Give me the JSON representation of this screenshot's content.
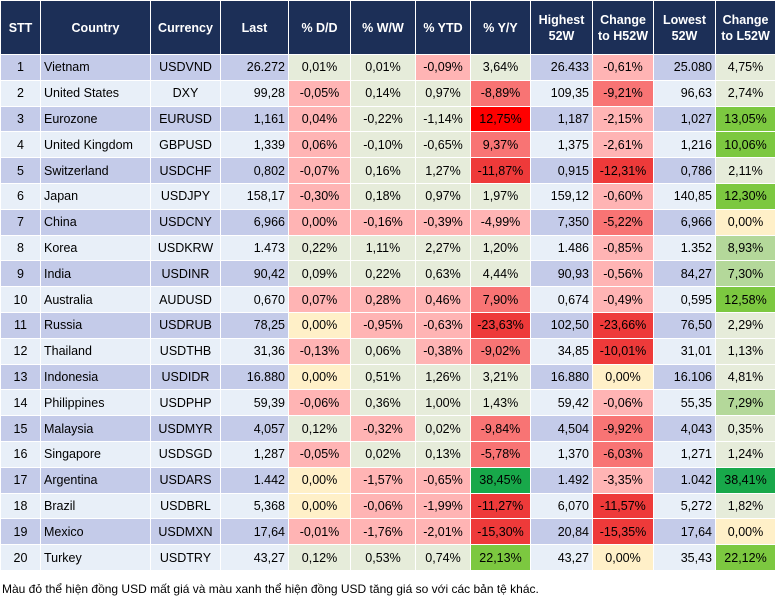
{
  "headers": [
    "STT",
    "Country",
    "Currency",
    "Last",
    "% D/D",
    "% W/W",
    "% YTD",
    "% Y/Y",
    "Highest 52W",
    "Change to H52W",
    "Lowest 52W",
    "Change to L52W"
  ],
  "colors": {
    "header_bg": "#1c2f57",
    "n": "#e6ecda",
    "r1": "#ffb4b4",
    "r2": "#f87474",
    "r3": "#ee3a3a",
    "r4": "#ff0000",
    "y": "#fff0c8",
    "g1": "#b4d89a",
    "g2": "#7cc840",
    "g3": "#18a84a"
  },
  "rows": [
    {
      "stt": "1",
      "country": "Vietnam",
      "currency": "USDVND",
      "last": "26.272",
      "dd": "0,01%",
      "ww": "0,01%",
      "ytd": "-0,09%",
      "yy": "3,64%",
      "high": "26.433",
      "ch": "-0,61%",
      "low": "25.080",
      "cl": "4,75%",
      "tone": [
        "n",
        "n",
        "r1",
        "n",
        "r1",
        "n"
      ]
    },
    {
      "stt": "2",
      "country": "United States",
      "currency": "DXY",
      "last": "99,28",
      "dd": "-0,05%",
      "ww": "0,14%",
      "ytd": "0,97%",
      "yy": "-8,89%",
      "high": "109,35",
      "ch": "-9,21%",
      "low": "96,63",
      "cl": "2,74%",
      "tone": [
        "r1",
        "n",
        "n",
        "r2",
        "r2",
        "n"
      ]
    },
    {
      "stt": "3",
      "country": "Eurozone",
      "currency": "EURUSD",
      "last": "1,161",
      "dd": "0,04%",
      "ww": "-0,22%",
      "ytd": "-1,14%",
      "yy": "12,75%",
      "high": "1,187",
      "ch": "-2,15%",
      "low": "1,027",
      "cl": "13,05%",
      "tone": [
        "r1",
        "n",
        "n",
        "r4",
        "r1",
        "g2"
      ]
    },
    {
      "stt": "4",
      "country": "United Kingdom",
      "currency": "GBPUSD",
      "last": "1,339",
      "dd": "0,06%",
      "ww": "-0,10%",
      "ytd": "-0,65%",
      "yy": "9,37%",
      "high": "1,375",
      "ch": "-2,61%",
      "low": "1,216",
      "cl": "10,06%",
      "tone": [
        "r1",
        "n",
        "n",
        "r2",
        "r1",
        "g2"
      ]
    },
    {
      "stt": "5",
      "country": "Switzerland",
      "currency": "USDCHF",
      "last": "0,802",
      "dd": "-0,07%",
      "ww": "0,16%",
      "ytd": "1,27%",
      "yy": "-11,87%",
      "high": "0,915",
      "ch": "-12,31%",
      "low": "0,786",
      "cl": "2,11%",
      "tone": [
        "r1",
        "n",
        "n",
        "r3",
        "r3",
        "n"
      ]
    },
    {
      "stt": "6",
      "country": "Japan",
      "currency": "USDJPY",
      "last": "158,17",
      "dd": "-0,30%",
      "ww": "0,18%",
      "ytd": "0,97%",
      "yy": "1,97%",
      "high": "159,12",
      "ch": "-0,60%",
      "low": "140,85",
      "cl": "12,30%",
      "tone": [
        "r1",
        "n",
        "n",
        "n",
        "r1",
        "g2"
      ]
    },
    {
      "stt": "7",
      "country": "China",
      "currency": "USDCNY",
      "last": "6,966",
      "dd": "0,00%",
      "ww": "-0,16%",
      "ytd": "-0,39%",
      "yy": "-4,99%",
      "high": "7,350",
      "ch": "-5,22%",
      "low": "6,966",
      "cl": "0,00%",
      "tone": [
        "r1",
        "r1",
        "r1",
        "r1",
        "r2",
        "y"
      ]
    },
    {
      "stt": "8",
      "country": "Korea",
      "currency": "USDKRW",
      "last": "1.473",
      "dd": "0,22%",
      "ww": "1,11%",
      "ytd": "2,27%",
      "yy": "1,20%",
      "high": "1.486",
      "ch": "-0,85%",
      "low": "1.352",
      "cl": "8,93%",
      "tone": [
        "n",
        "n",
        "n",
        "n",
        "r1",
        "g1"
      ]
    },
    {
      "stt": "9",
      "country": "India",
      "currency": "USDINR",
      "last": "90,42",
      "dd": "0,09%",
      "ww": "0,22%",
      "ytd": "0,63%",
      "yy": "4,44%",
      "high": "90,93",
      "ch": "-0,56%",
      "low": "84,27",
      "cl": "7,30%",
      "tone": [
        "n",
        "n",
        "n",
        "n",
        "r1",
        "g1"
      ]
    },
    {
      "stt": "10",
      "country": "Australia",
      "currency": "AUDUSD",
      "last": "0,670",
      "dd": "0,07%",
      "ww": "0,28%",
      "ytd": "0,46%",
      "yy": "7,90%",
      "high": "0,674",
      "ch": "-0,49%",
      "low": "0,595",
      "cl": "12,58%",
      "tone": [
        "r1",
        "r1",
        "r1",
        "r2",
        "r1",
        "g2"
      ]
    },
    {
      "stt": "11",
      "country": "Russia",
      "currency": "USDRUB",
      "last": "78,25",
      "dd": "0,00%",
      "ww": "-0,95%",
      "ytd": "-0,63%",
      "yy": "-23,63%",
      "high": "102,50",
      "ch": "-23,66%",
      "low": "76,50",
      "cl": "2,29%",
      "tone": [
        "y",
        "r1",
        "r1",
        "r3",
        "r3",
        "n"
      ]
    },
    {
      "stt": "12",
      "country": "Thailand",
      "currency": "USDTHB",
      "last": "31,36",
      "dd": "-0,13%",
      "ww": "0,06%",
      "ytd": "-0,38%",
      "yy": "-9,02%",
      "high": "34,85",
      "ch": "-10,01%",
      "low": "31,01",
      "cl": "1,13%",
      "tone": [
        "r1",
        "n",
        "r1",
        "r2",
        "r3",
        "n"
      ]
    },
    {
      "stt": "13",
      "country": "Indonesia",
      "currency": "USDIDR",
      "last": "16.880",
      "dd": "0,00%",
      "ww": "0,51%",
      "ytd": "1,26%",
      "yy": "3,21%",
      "high": "16.880",
      "ch": "0,00%",
      "low": "16.106",
      "cl": "4,81%",
      "tone": [
        "y",
        "n",
        "n",
        "n",
        "y",
        "n"
      ]
    },
    {
      "stt": "14",
      "country": "Philippines",
      "currency": "USDPHP",
      "last": "59,39",
      "dd": "-0,06%",
      "ww": "0,36%",
      "ytd": "1,00%",
      "yy": "1,43%",
      "high": "59,42",
      "ch": "-0,06%",
      "low": "55,35",
      "cl": "7,29%",
      "tone": [
        "r1",
        "n",
        "n",
        "n",
        "r1",
        "g1"
      ]
    },
    {
      "stt": "15",
      "country": "Malaysia",
      "currency": "USDMYR",
      "last": "4,057",
      "dd": "0,12%",
      "ww": "-0,32%",
      "ytd": "0,02%",
      "yy": "-9,84%",
      "high": "4,504",
      "ch": "-9,92%",
      "low": "4,043",
      "cl": "0,35%",
      "tone": [
        "n",
        "r1",
        "n",
        "r2",
        "r2",
        "n"
      ]
    },
    {
      "stt": "16",
      "country": "Singapore",
      "currency": "USDSGD",
      "last": "1,287",
      "dd": "-0,05%",
      "ww": "0,02%",
      "ytd": "0,13%",
      "yy": "-5,78%",
      "high": "1,370",
      "ch": "-6,03%",
      "low": "1,271",
      "cl": "1,24%",
      "tone": [
        "r1",
        "n",
        "n",
        "r2",
        "r2",
        "n"
      ]
    },
    {
      "stt": "17",
      "country": "Argentina",
      "currency": "USDARS",
      "last": "1.442",
      "dd": "0,00%",
      "ww": "-1,57%",
      "ytd": "-0,65%",
      "yy": "38,45%",
      "high": "1.492",
      "ch": "-3,35%",
      "low": "1.042",
      "cl": "38,41%",
      "tone": [
        "y",
        "r1",
        "r1",
        "g3",
        "r1",
        "g3"
      ]
    },
    {
      "stt": "18",
      "country": "Brazil",
      "currency": "USDBRL",
      "last": "5,368",
      "dd": "0,00%",
      "ww": "-0,06%",
      "ytd": "-1,99%",
      "yy": "-11,27%",
      "high": "6,070",
      "ch": "-11,57%",
      "low": "5,272",
      "cl": "1,82%",
      "tone": [
        "y",
        "r1",
        "r1",
        "r3",
        "r3",
        "n"
      ]
    },
    {
      "stt": "19",
      "country": "Mexico",
      "currency": "USDMXN",
      "last": "17,64",
      "dd": "-0,01%",
      "ww": "-1,76%",
      "ytd": "-2,01%",
      "yy": "-15,30%",
      "high": "20,84",
      "ch": "-15,35%",
      "low": "17,64",
      "cl": "0,00%",
      "tone": [
        "r1",
        "r1",
        "r1",
        "r3",
        "r3",
        "y"
      ]
    },
    {
      "stt": "20",
      "country": "Turkey",
      "currency": "USDTRY",
      "last": "43,27",
      "dd": "0,12%",
      "ww": "0,53%",
      "ytd": "0,74%",
      "yy": "22,13%",
      "high": "43,27",
      "ch": "0,00%",
      "low": "35,43",
      "cl": "22,12%",
      "tone": [
        "n",
        "n",
        "n",
        "g2",
        "y",
        "g2"
      ]
    }
  ],
  "footnote": "Màu đỏ thể hiện đồng USD mất giá và màu xanh thể hiện đồng USD tăng giá so với các bản tệ khác."
}
